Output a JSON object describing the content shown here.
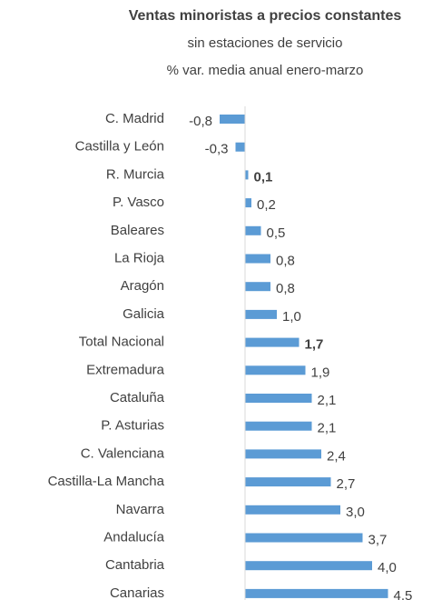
{
  "chart_data": {
    "type": "hbar",
    "title": "Ventas minoristas a precios constantes",
    "subtitle": [
      "sin estaciones de servicio",
      "% var. media anual enero-marzo"
    ],
    "categories": [
      "C. Madrid",
      "Castilla y León",
      "R. Murcia",
      "P. Vasco",
      "Baleares",
      "La Rioja",
      "Aragón",
      "Galicia",
      "Total Nacional",
      "Extremadura",
      "Cataluña",
      "P. Asturias",
      "C. Valenciana",
      "Castilla-La Mancha",
      "Navarra",
      "Andalucía",
      "Cantabria",
      "Canarias"
    ],
    "values": [
      -0.8,
      -0.3,
      0.1,
      0.2,
      0.5,
      0.8,
      0.8,
      1.0,
      1.7,
      1.9,
      2.1,
      2.1,
      2.4,
      2.7,
      3.0,
      3.7,
      4.0,
      4.5
    ],
    "value_labels": [
      "-0,8",
      "-0,3",
      "0,1",
      "0,2",
      "0,5",
      "0,8",
      "0,8",
      "1,0",
      "1,7",
      "1,9",
      "2,1",
      "2,1",
      "2,4",
      "2,7",
      "3,0",
      "3,7",
      "4,0",
      "4,5"
    ],
    "bold_labels": [
      2,
      8
    ],
    "color": "#5b9bd5",
    "xlim": [
      -0.8,
      4.5
    ]
  }
}
